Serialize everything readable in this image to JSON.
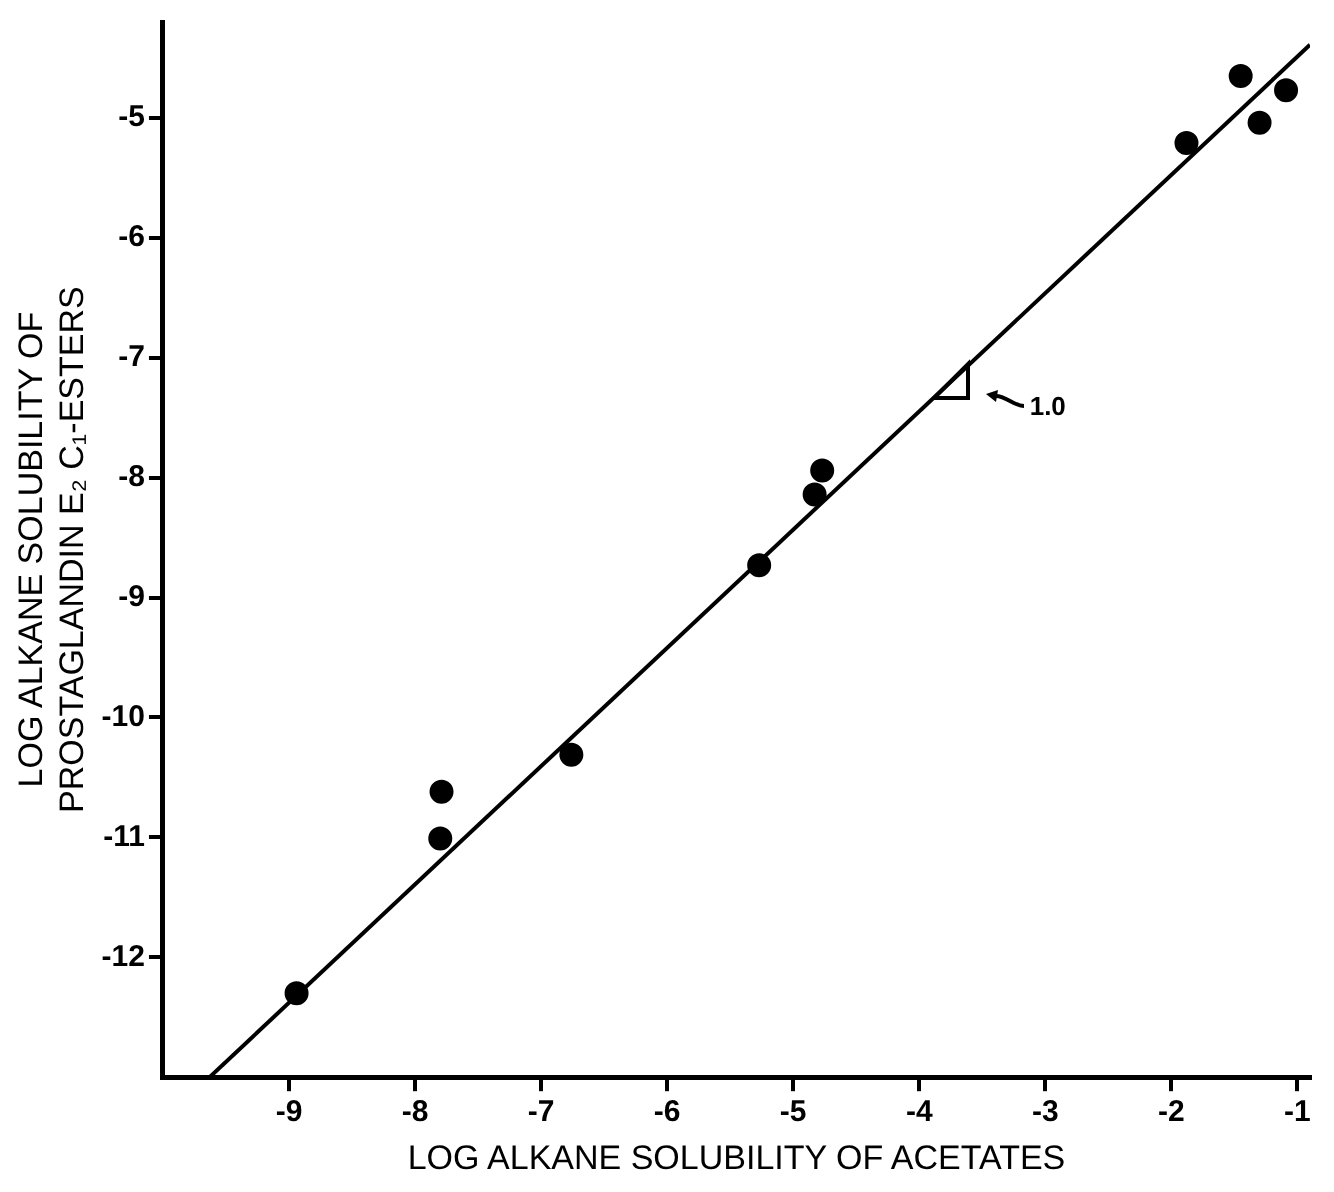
{
  "chart_data": {
    "type": "scatter",
    "xlabel": "LOG ALKANE SOLUBILITY OF ACETATES",
    "ylabel": "LOG ALKANE SOLUBILITY OF\nPROSTAGLANDIN E₂ C₁-ESTERS",
    "xlim": [
      -10,
      -0.9
    ],
    "ylim": [
      -13,
      -4.2
    ],
    "xticks": [
      -9,
      -8,
      -7,
      -6,
      -5,
      -4,
      -3,
      -2,
      -1
    ],
    "yticks": [
      -12,
      -11,
      -10,
      -9,
      -8,
      -7,
      -6,
      -5
    ],
    "grid": false,
    "legend": false,
    "marker": "circle",
    "series": [
      {
        "color": "#000000",
        "x": [
          -8.94,
          -7.79,
          -7.8,
          -6.76,
          -5.27,
          -4.83,
          -4.77,
          -1.88,
          -1.45,
          -1.3,
          -1.09
        ],
        "values": [
          -12.3,
          -10.62,
          -11.01,
          -10.31,
          -8.73,
          -8.14,
          -7.94,
          -5.21,
          -4.65,
          -5.04,
          -4.77
        ]
      },
      {
        "type": "line",
        "color": "#000000",
        "line_style": "solid",
        "marker": "none",
        "x": [
          -9.63,
          -0.9
        ],
        "values": [
          -13,
          -4.39
        ]
      }
    ],
    "annotations": [
      {
        "text": "1.0",
        "x": -3.6,
        "y": -7.05
      }
    ]
  }
}
